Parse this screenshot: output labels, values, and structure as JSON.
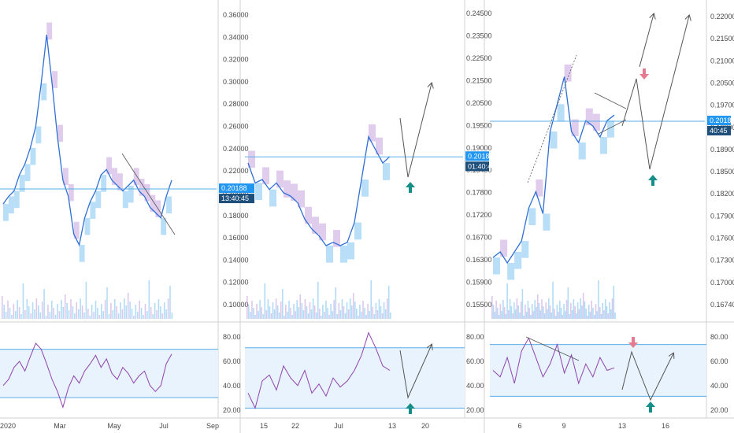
{
  "colors": {
    "price": "#2f6fd6",
    "cloud_bull": "#7fc3f2",
    "cloud_bear": "#c7a2dc",
    "hline": "#5aaee8",
    "badge": "#2196f3",
    "rsi_line": "#8e44ad",
    "rsi_band": "#e8f3fd",
    "rsi_bound": "#5aaee8",
    "arrow_up": "#168f8a",
    "arrow_down": "#e57b8e",
    "annotation": "#555555",
    "divider": "#d0d0d0"
  },
  "chart_data": [
    {
      "type": "line",
      "panel": "daily",
      "y_ticks": [
        "0.36000",
        "0.34000",
        "0.32000",
        "0.30000",
        "0.28000",
        "0.26000",
        "0.24000",
        "0.22000",
        "0.20000",
        "0.18000",
        "0.16000",
        "0.14000",
        "0.12000",
        "0.10000"
      ],
      "x_ticks": [
        "2020",
        "Mar",
        "May",
        "Jul",
        "Sep"
      ],
      "ylim": [
        0.085,
        0.37
      ],
      "price_badge": "0.20188",
      "timer_badge": "13:40:45",
      "current_price": 0.20188,
      "series": [
        {
          "values": [
            0.188,
            0.195,
            0.2,
            0.215,
            0.225,
            0.24,
            0.26,
            0.3,
            0.345,
            0.3,
            0.25,
            0.21,
            0.195,
            0.16,
            0.15,
            0.175,
            0.19,
            0.2,
            0.215,
            0.22,
            0.21,
            0.205,
            0.2,
            0.205,
            0.21,
            0.2,
            0.195,
            0.185,
            0.18,
            0.175,
            0.195,
            0.21
          ]
        }
      ],
      "rsi": {
        "y_ticks": [
          "80.00",
          "60.00",
          "40.00",
          "20.00"
        ],
        "ylim": [
          15,
          90
        ],
        "upper": 70,
        "lower": 30,
        "values": [
          40,
          45,
          55,
          60,
          52,
          64,
          75,
          70,
          58,
          45,
          35,
          22,
          38,
          48,
          42,
          52,
          58,
          65,
          55,
          62,
          50,
          45,
          55,
          50,
          42,
          48,
          52,
          40,
          35,
          40,
          58,
          66
        ]
      }
    },
    {
      "type": "line",
      "panel": "4h",
      "y_ticks": [
        "0.24500",
        "0.23500",
        "0.22500",
        "0.21500",
        "0.20500",
        "0.19500",
        "0.19000",
        "0.18400",
        "0.17800",
        "0.17200",
        "0.16700",
        "0.16300",
        "0.15900",
        "0.15500"
      ],
      "x_ticks": [
        "15",
        "22",
        "Jul",
        "13",
        "20"
      ],
      "ylim": [
        0.154,
        0.2475
      ],
      "price_badge": "0.20188",
      "timer_badge": "01:40:45",
      "current_price": 0.20188,
      "series": [
        {
          "values": [
            0.2,
            0.194,
            0.195,
            0.192,
            0.194,
            0.191,
            0.19,
            0.188,
            0.183,
            0.18,
            0.178,
            0.175,
            0.176,
            0.175,
            0.176,
            0.182,
            0.195,
            0.208,
            0.204,
            0.2,
            0.202
          ]
        }
      ],
      "rsi": {
        "y_ticks": [
          "80.00",
          "60.00",
          "40.00",
          "20.00"
        ],
        "ylim": [
          25,
          85
        ],
        "upper": 70,
        "lower": 30,
        "values": [
          40,
          30,
          48,
          52,
          42,
          58,
          50,
          45,
          55,
          40,
          46,
          38,
          50,
          44,
          48,
          55,
          65,
          80,
          70,
          58,
          55
        ]
      }
    },
    {
      "type": "line",
      "panel": "1h",
      "y_ticks": [
        "0.22000",
        "0.21500",
        "0.21000",
        "0.20500",
        "0.19700",
        "0.19300",
        "0.18900",
        "0.18500",
        "0.18200",
        "0.17900",
        "0.17600",
        "0.17300",
        "0.17000",
        "0.16740"
      ],
      "x_ticks": [
        "6",
        "9",
        "13",
        "16"
      ],
      "ylim": [
        0.1665,
        0.2223
      ],
      "price_badge": "0.20188",
      "timer_badge": "40:45",
      "current_price": 0.20188,
      "series": [
        {
          "values": [
            0.177,
            0.178,
            0.176,
            0.178,
            0.18,
            0.186,
            0.189,
            0.185,
            0.2,
            0.205,
            0.21,
            0.2,
            0.198,
            0.202,
            0.201,
            0.199,
            0.202,
            0.203
          ]
        }
      ],
      "rsi": {
        "y_ticks": [
          "80.00",
          "60.00",
          "40.00",
          "20.00"
        ],
        "ylim": [
          15,
          85
        ],
        "upper": 70,
        "lower": 30,
        "values": [
          50,
          45,
          60,
          40,
          65,
          75,
          60,
          45,
          55,
          70,
          48,
          62,
          40,
          55,
          45,
          60,
          50,
          52
        ]
      }
    }
  ]
}
